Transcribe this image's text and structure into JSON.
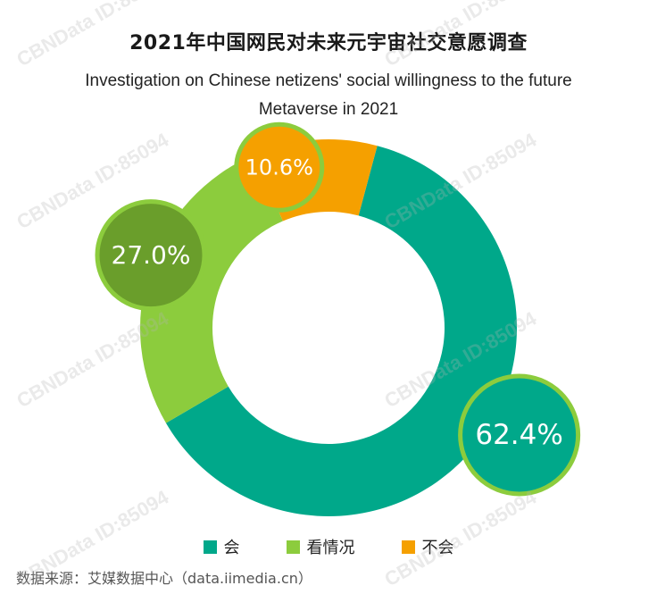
{
  "title": "2021年中国网民对未来元宇宙社交意愿调查",
  "subtitle_line1": "Investigation on Chinese netizens' social willingness to the future",
  "subtitle_line2": "Metaverse in 2021",
  "source": "数据来源：艾媒数据中心（data.iimedia.cn）",
  "watermark": "CBNData ID:85094",
  "colors": {
    "teal": "#00a88a",
    "light_green": "#8ccc3d",
    "dark_green": "#6a9e2b",
    "orange": "#f5a000",
    "bubble_border": "#8ccc3d"
  },
  "chart_data": {
    "type": "pie",
    "variant": "donut",
    "categories": [
      "会",
      "看情况",
      "不会"
    ],
    "values": [
      62.4,
      27.0,
      10.6
    ],
    "value_labels": [
      "62.4%",
      "27.0%",
      "10.6%"
    ],
    "legend_position": "bottom"
  }
}
